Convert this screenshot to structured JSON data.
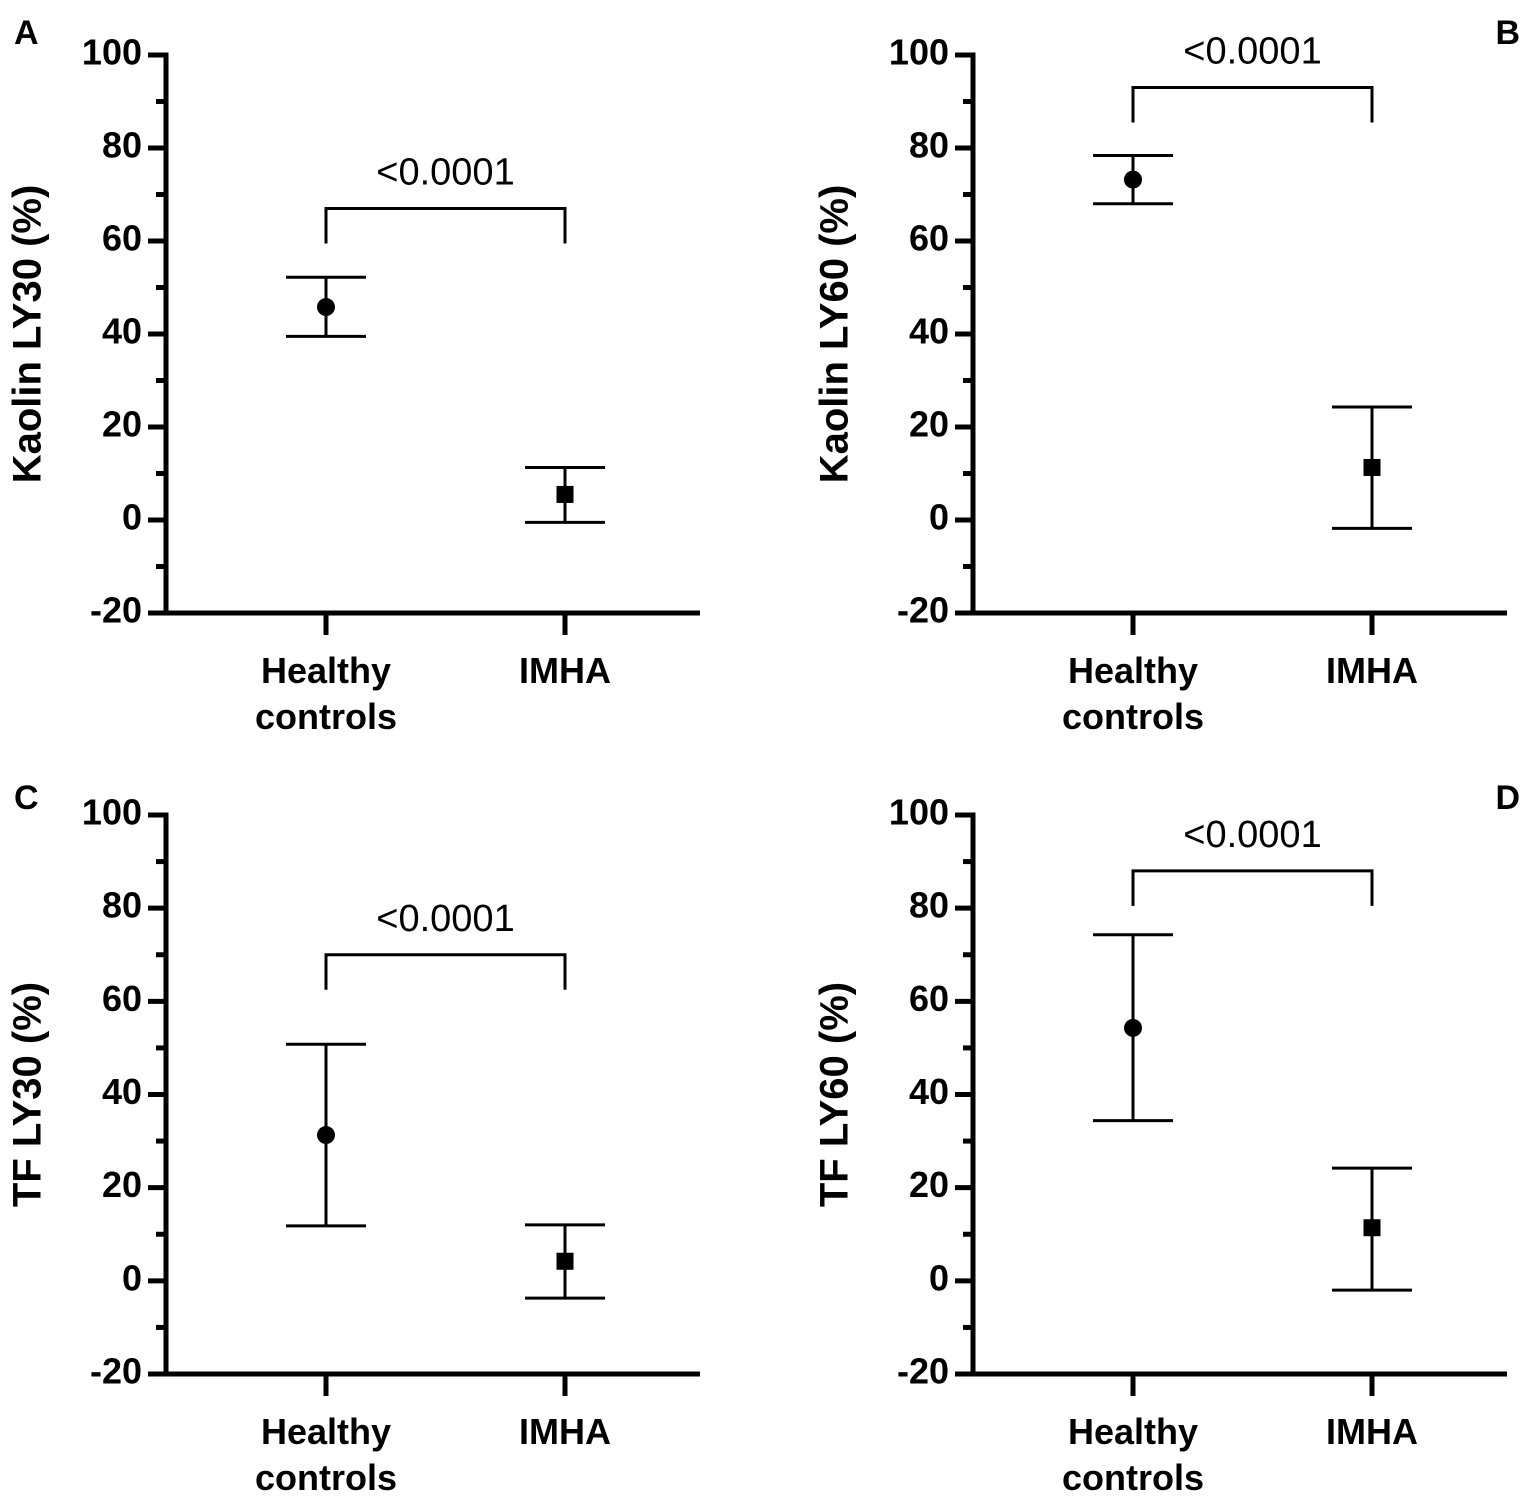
{
  "chart_data": [
    {
      "panel": "A",
      "type": "scatter",
      "categories": [
        "Healthy\ncontrols",
        "IMHA"
      ],
      "series": [
        {
          "name": "Healthy controls",
          "marker": "circle",
          "value": 45.8,
          "error_low": 39.5,
          "error_high": 52.2
        },
        {
          "name": "IMHA",
          "marker": "square",
          "value": 5.5,
          "error_low": -0.5,
          "error_high": 11.3
        }
      ],
      "ylabel": "Kaolin LY30 (%)",
      "ylim": [
        -20,
        100
      ],
      "yticks": [
        "100",
        "80",
        "60",
        "40",
        "20",
        "0",
        "-20"
      ],
      "significance": {
        "label": "<0.0001",
        "bracket_at": 67
      }
    },
    {
      "panel": "B",
      "type": "scatter",
      "categories": [
        "Healthy\ncontrols",
        "IMHA"
      ],
      "series": [
        {
          "name": "Healthy controls",
          "marker": "circle",
          "value": 73.2,
          "error_low": 68.0,
          "error_high": 78.4
        },
        {
          "name": "IMHA",
          "marker": "square",
          "value": 11.3,
          "error_low": -1.8,
          "error_high": 24.3
        }
      ],
      "ylabel": "Kaolin LY60 (%)",
      "ylim": [
        -20,
        100
      ],
      "yticks": [
        "100",
        "80",
        "60",
        "40",
        "20",
        "0",
        "-20"
      ],
      "significance": {
        "label": "<0.0001",
        "bracket_at": 93
      }
    },
    {
      "panel": "C",
      "type": "scatter",
      "categories": [
        "Healthy\ncontrols",
        "IMHA"
      ],
      "series": [
        {
          "name": "Healthy controls",
          "marker": "circle",
          "value": 31.3,
          "error_low": 11.8,
          "error_high": 50.8
        },
        {
          "name": "IMHA",
          "marker": "square",
          "value": 4.2,
          "error_low": -3.7,
          "error_high": 12.0
        }
      ],
      "ylabel": "TF LY30 (%)",
      "ylim": [
        -20,
        100
      ],
      "yticks": [
        "100",
        "80",
        "60",
        "40",
        "20",
        "0",
        "-20"
      ],
      "significance": {
        "label": "<0.0001",
        "bracket_at": 70
      }
    },
    {
      "panel": "D",
      "type": "scatter",
      "categories": [
        "Healthy\ncontrols",
        "IMHA"
      ],
      "series": [
        {
          "name": "Healthy controls",
          "marker": "circle",
          "value": 54.3,
          "error_low": 34.4,
          "error_high": 74.3
        },
        {
          "name": "IMHA",
          "marker": "square",
          "value": 11.4,
          "error_low": -2.0,
          "error_high": 24.2
        }
      ],
      "ylabel": "TF LY60 (%)",
      "ylim": [
        -20,
        100
      ],
      "yticks": [
        "100",
        "80",
        "60",
        "40",
        "20",
        "0",
        "-20"
      ],
      "significance": {
        "label": "<0.0001",
        "bracket_at": 88
      }
    }
  ]
}
